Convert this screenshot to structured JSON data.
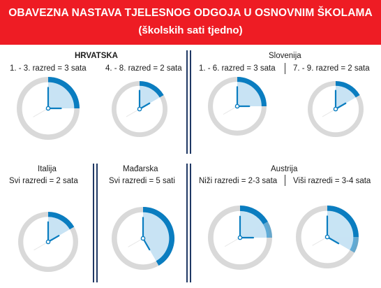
{
  "header": {
    "title": "OBAVEZNA NASTAVA TJELESNOG ODGOJA U OSNOVNIM ŠKOLAMA",
    "subtitle": "(školskih sati tjedno)"
  },
  "colors": {
    "header_bg": "#ee1c24",
    "arc": "#0a7dc0",
    "wedge": "#c8e3f4",
    "ring": "#d9d9d9",
    "divider": "#1f3864"
  },
  "panels": {
    "croatia": {
      "country": "HRVATSKA",
      "left": "1. - 3. razred = 3 sata",
      "right": "4. - 8. razred = 2 sata"
    },
    "slovenia": {
      "country": "Slovenija",
      "left": "1. - 6. razred = 3 sata",
      "right": "7. - 9. razred = 2 sata"
    },
    "italy": {
      "country": "Italija",
      "label": "Svi razredi = 2 sata"
    },
    "hungary": {
      "country": "Mađarska",
      "label": "Svi razredi = 5 sati"
    },
    "austria": {
      "country": "Austrija",
      "left": "Niži razredi = 2-3 sata",
      "right": "Viši razredi = 3-4 sata"
    }
  },
  "clocks": [
    {
      "id": "hr-1-3",
      "hours": 3
    },
    {
      "id": "hr-4-8",
      "hours": 2
    },
    {
      "id": "si-1-6",
      "hours": 3
    },
    {
      "id": "si-7-9",
      "hours": 2
    },
    {
      "id": "it-all",
      "hours": 2
    },
    {
      "id": "hu-all",
      "hours": 5
    },
    {
      "id": "at-lower",
      "hours_min": 2,
      "hours_max": 3
    },
    {
      "id": "at-upper",
      "hours_min": 3,
      "hours_max": 4
    }
  ]
}
